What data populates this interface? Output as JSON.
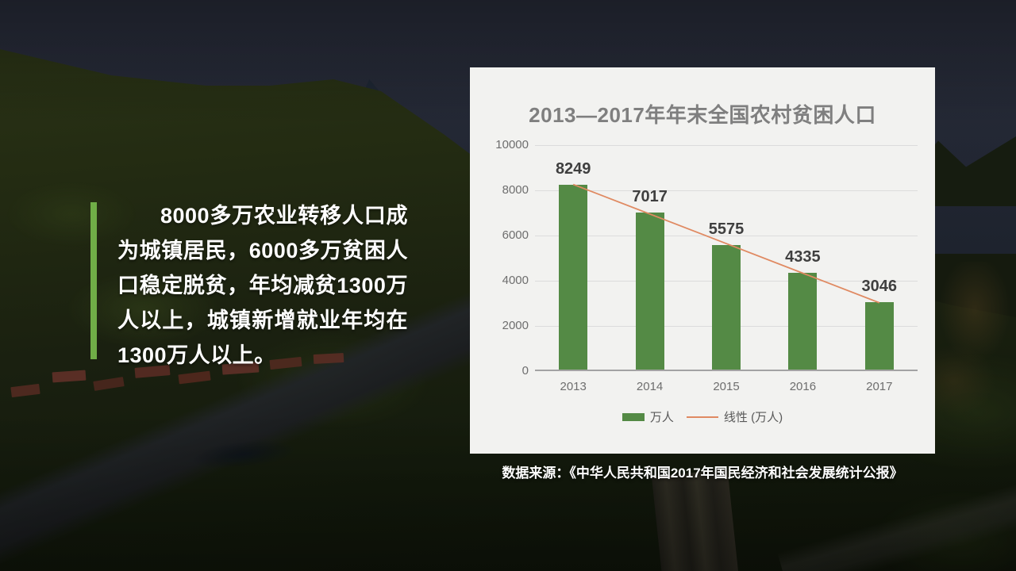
{
  "slide": {
    "body_text": "8000多万农业转移人口成为城镇居民，6000多万贫困人口稳定脱贫，年均减贫1300万人以上，城镇新增就业年均在1300万人以上。",
    "caption": "数据来源：《中华人民共和国2017年国民经济和社会发展统计公报》",
    "accent_color": "#70ad47"
  },
  "chart_data": {
    "type": "bar",
    "title": "2013—2017年年末全国农村贫困人口",
    "categories": [
      "2013",
      "2014",
      "2015",
      "2016",
      "2017"
    ],
    "series": [
      {
        "name": "万人",
        "type": "bar",
        "values": [
          8249,
          7017,
          5575,
          4335,
          3046
        ],
        "color": "#548a45"
      },
      {
        "name": "线性 (万人)",
        "type": "linear-trendline",
        "color": "#e08a62"
      }
    ],
    "xlabel": "",
    "ylabel": "",
    "ylim": [
      0,
      10000
    ],
    "yticks": [
      0,
      2000,
      4000,
      6000,
      8000,
      10000
    ],
    "grid": true,
    "show_data_labels": true,
    "legend_position": "bottom",
    "colors": {
      "card_background": "#f2f2f0",
      "title_text": "#7f7f7f",
      "tick_text": "#6e6e6e",
      "data_label_text": "#3f3f3f",
      "gridline": "#dcdcdc",
      "axis_line": "#a3a3a3"
    }
  }
}
